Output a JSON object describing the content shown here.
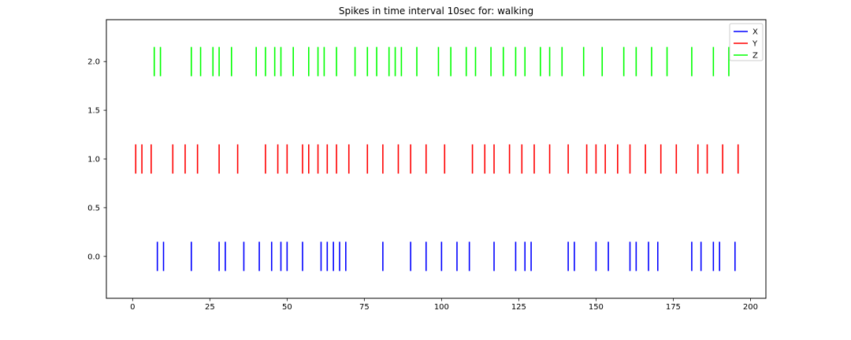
{
  "chart_data": {
    "type": "scatter",
    "title": "Spikes in time interval 10sec for: walking",
    "xlabel": "",
    "ylabel": "",
    "xlim": [
      -8.5,
      205
    ],
    "ylim": [
      -0.43,
      2.43
    ],
    "xticks": [
      0,
      25,
      50,
      75,
      100,
      125,
      150,
      175,
      200
    ],
    "yticks": [
      0.0,
      0.5,
      1.0,
      1.5,
      2.0
    ],
    "ytick_labels": [
      "0.0",
      "0.5",
      "1.0",
      "1.5",
      "2.0"
    ],
    "legend_position": "top-right",
    "grid": false,
    "series": [
      {
        "name": "X",
        "color": "#0000ff",
        "y": 0,
        "spikes": [
          8,
          10,
          19,
          28,
          30,
          36,
          41,
          45,
          48,
          50,
          55,
          61,
          63,
          65,
          67,
          69,
          81,
          90,
          95,
          100,
          105,
          109,
          117,
          124,
          127,
          129,
          141,
          143,
          150,
          154,
          161,
          163,
          167,
          170,
          181,
          184,
          188,
          190,
          195
        ]
      },
      {
        "name": "Y",
        "color": "#ff0000",
        "y": 1,
        "spikes": [
          1,
          3,
          6,
          13,
          17,
          21,
          28,
          34,
          43,
          47,
          50,
          55,
          57,
          60,
          63,
          66,
          70,
          76,
          81,
          86,
          90,
          95,
          101,
          110,
          114,
          117,
          122,
          126,
          130,
          135,
          141,
          147,
          150,
          153,
          157,
          161,
          166,
          171,
          176,
          183,
          186,
          191,
          196
        ]
      },
      {
        "name": "Z",
        "color": "#00ff00",
        "y": 2,
        "spikes": [
          7,
          9,
          19,
          22,
          26,
          28,
          32,
          40,
          43,
          46,
          48,
          52,
          57,
          60,
          62,
          66,
          72,
          76,
          79,
          83,
          85,
          87,
          92,
          99,
          103,
          108,
          111,
          116,
          120,
          124,
          127,
          132,
          135,
          139,
          146,
          152,
          159,
          163,
          168,
          173,
          181,
          188,
          193
        ]
      }
    ]
  }
}
